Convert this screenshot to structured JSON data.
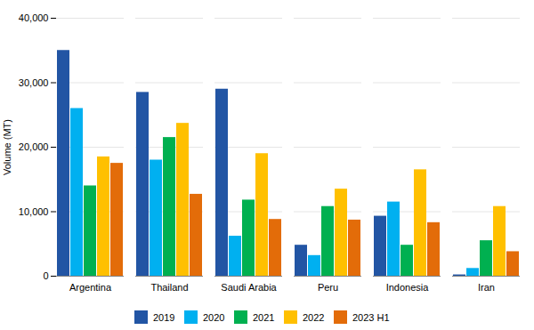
{
  "chart_data": {
    "type": "bar",
    "categories": [
      "Argentina",
      "Thailand",
      "Saudi Arabia",
      "Peru",
      "Indonesia",
      "Iran"
    ],
    "series": [
      {
        "name": "2019",
        "color": "#2255a4",
        "values": [
          35000,
          28500,
          29000,
          4800,
          9300,
          200
        ]
      },
      {
        "name": "2020",
        "color": "#00b0f0",
        "values": [
          26000,
          18000,
          6200,
          3200,
          11500,
          1200
        ]
      },
      {
        "name": "2021",
        "color": "#00b050",
        "values": [
          14000,
          21500,
          11800,
          10800,
          4800,
          5500
        ]
      },
      {
        "name": "2022",
        "color": "#ffc000",
        "values": [
          18500,
          23700,
          19000,
          13500,
          16500,
          10800
        ]
      },
      {
        "name": "2023 H1",
        "color": "#e36c09",
        "values": [
          17500,
          12700,
          8800,
          8700,
          8300,
          3800
        ]
      }
    ],
    "ylabel": "Volume (MT)",
    "ylim": [
      0,
      40000
    ],
    "yticks": [
      0,
      {
        "value": 10000,
        "label": "10,000"
      },
      {
        "value": 20000,
        "label": "20,000"
      },
      {
        "value": 30000,
        "label": "30,000"
      },
      {
        "value": 40000,
        "label": "40,000"
      }
    ],
    "grid": true,
    "legend": "bottom"
  }
}
